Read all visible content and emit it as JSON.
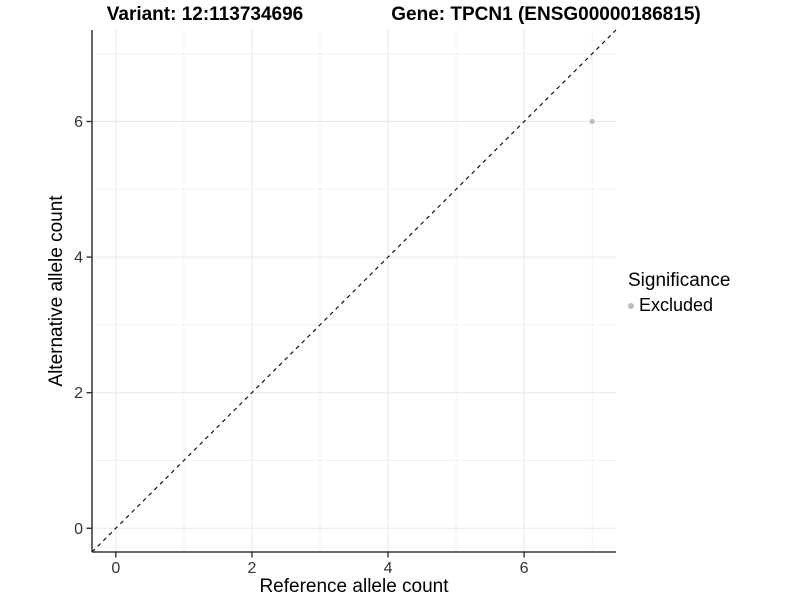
{
  "figure": {
    "background": "#ffffff"
  },
  "chart_data": {
    "type": "scatter",
    "title_left": "Variant: 12:113734696",
    "title_right": "Gene: TPCN1 (ENSG00000186815)",
    "xlabel": "Reference allele count",
    "ylabel": "Alternative allele count",
    "xlim": [
      -0.35,
      7.35
    ],
    "ylim": [
      -0.35,
      7.35
    ],
    "x_ticks": [
      0,
      2,
      4,
      6
    ],
    "y_ticks": [
      0,
      2,
      4,
      6
    ],
    "x_minor_ticks": [
      1,
      3,
      5,
      7
    ],
    "y_minor_ticks": [
      1,
      3,
      5,
      7
    ],
    "grid": "major and minor gridlines, light gray on white panel",
    "identity_line": {
      "style": "dashed",
      "color": "#000000",
      "from": [
        -0.35,
        -0.35
      ],
      "to": [
        7.35,
        7.35
      ]
    },
    "series": [
      {
        "name": "Excluded",
        "color": "#bdbdbd",
        "points": [
          [
            7,
            6
          ]
        ]
      }
    ],
    "legend": {
      "title": "Significance",
      "position": "right",
      "entries": [
        {
          "label": "Excluded",
          "color": "#bdbdbd"
        }
      ]
    },
    "colors": {
      "axis": "#333333",
      "grid_major": "#e8e8e8",
      "grid_minor": "#f3f3f3",
      "tick_text": "#333333",
      "point": "#bdbdbd"
    }
  }
}
